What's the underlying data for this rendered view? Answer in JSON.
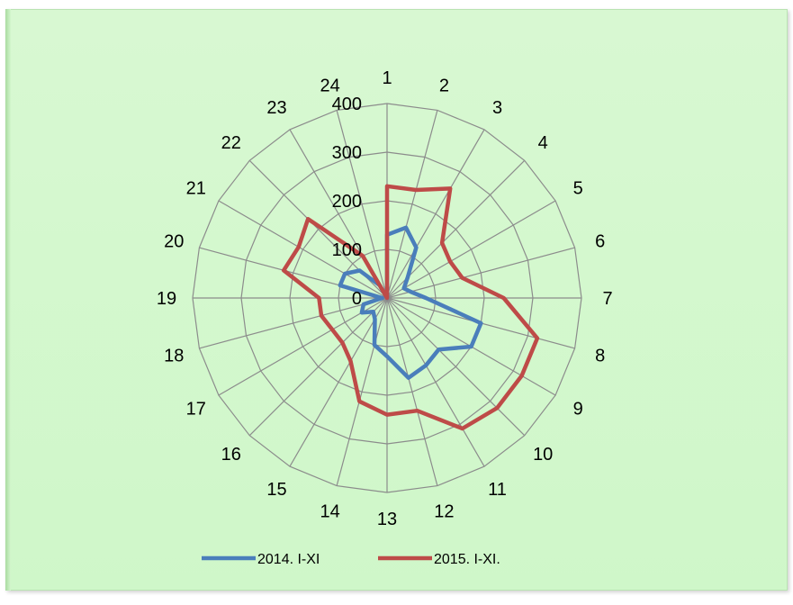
{
  "chart_data": {
    "type": "radar",
    "categories": [
      "1",
      "2",
      "3",
      "4",
      "5",
      "6",
      "7",
      "8",
      "9",
      "10",
      "11",
      "12",
      "13",
      "14",
      "15",
      "16",
      "17",
      "18",
      "19",
      "20",
      "21",
      "22",
      "23",
      "24"
    ],
    "rlim": [
      0,
      400
    ],
    "ticks": [
      "0",
      "100",
      "200",
      "300",
      "400"
    ],
    "grid": true,
    "legend_position": "bottom",
    "series": [
      {
        "name": "2014. I-XI",
        "color": "#4a7ebb",
        "values": [
          130,
          150,
          120,
          60,
          40,
          50,
          80,
          200,
          200,
          150,
          160,
          170,
          120,
          100,
          50,
          40,
          60,
          50,
          10,
          100,
          100,
          80,
          30,
          0
        ]
      },
      {
        "name": "2015. I-XI.",
        "color": "#be4b48",
        "values": [
          230,
          230,
          260,
          160,
          150,
          160,
          240,
          320,
          320,
          320,
          310,
          240,
          240,
          220,
          150,
          130,
          130,
          140,
          140,
          220,
          210,
          230,
          100,
          0
        ]
      }
    ]
  }
}
